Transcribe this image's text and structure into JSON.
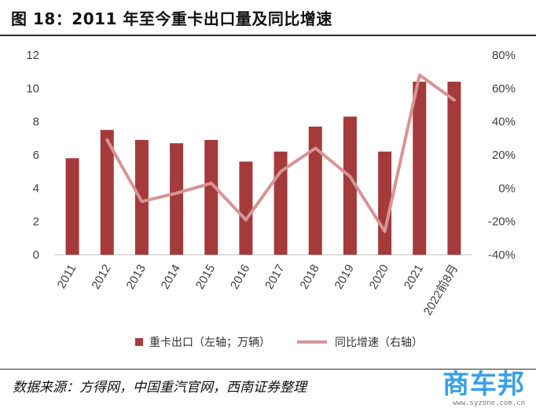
{
  "figure": {
    "title": "图 18：2011 年至今重卡出口量及同比增速",
    "source": "数据来源：方得网，中国重汽官网，西南证券整理",
    "watermark_logo": "商车邦",
    "watermark_url": "www.syzone.com.cn"
  },
  "colors": {
    "bar": "#a53a3b",
    "line": "#d79494",
    "axis_text": "#404040"
  },
  "chart_data": {
    "type": "bar+line",
    "categories": [
      "2011",
      "2012",
      "2013",
      "2014",
      "2015",
      "2016",
      "2017",
      "2018",
      "2019",
      "2020",
      "2021",
      "2022前8月"
    ],
    "series": [
      {
        "name": "重卡出口（左轴；万辆）",
        "type": "bar",
        "axis": "left",
        "values": [
          5.8,
          7.5,
          6.9,
          6.7,
          6.9,
          5.6,
          6.2,
          7.7,
          8.3,
          6.2,
          10.4,
          10.4
        ]
      },
      {
        "name": "同比增速（右轴）",
        "type": "line",
        "axis": "right",
        "values": [
          null,
          29,
          -8,
          -3,
          3,
          -19,
          10,
          24,
          7,
          -26,
          68,
          53
        ]
      }
    ],
    "left_axis": {
      "min": 0,
      "max": 12,
      "ticks": [
        "0",
        "2",
        "4",
        "6",
        "8",
        "10",
        "12"
      ]
    },
    "right_axis": {
      "min": -40,
      "max": 80,
      "ticks": [
        "-40%",
        "-20%",
        "0%",
        "20%",
        "40%",
        "60%",
        "80%"
      ]
    },
    "legend_position": "bottom",
    "grid": false
  }
}
